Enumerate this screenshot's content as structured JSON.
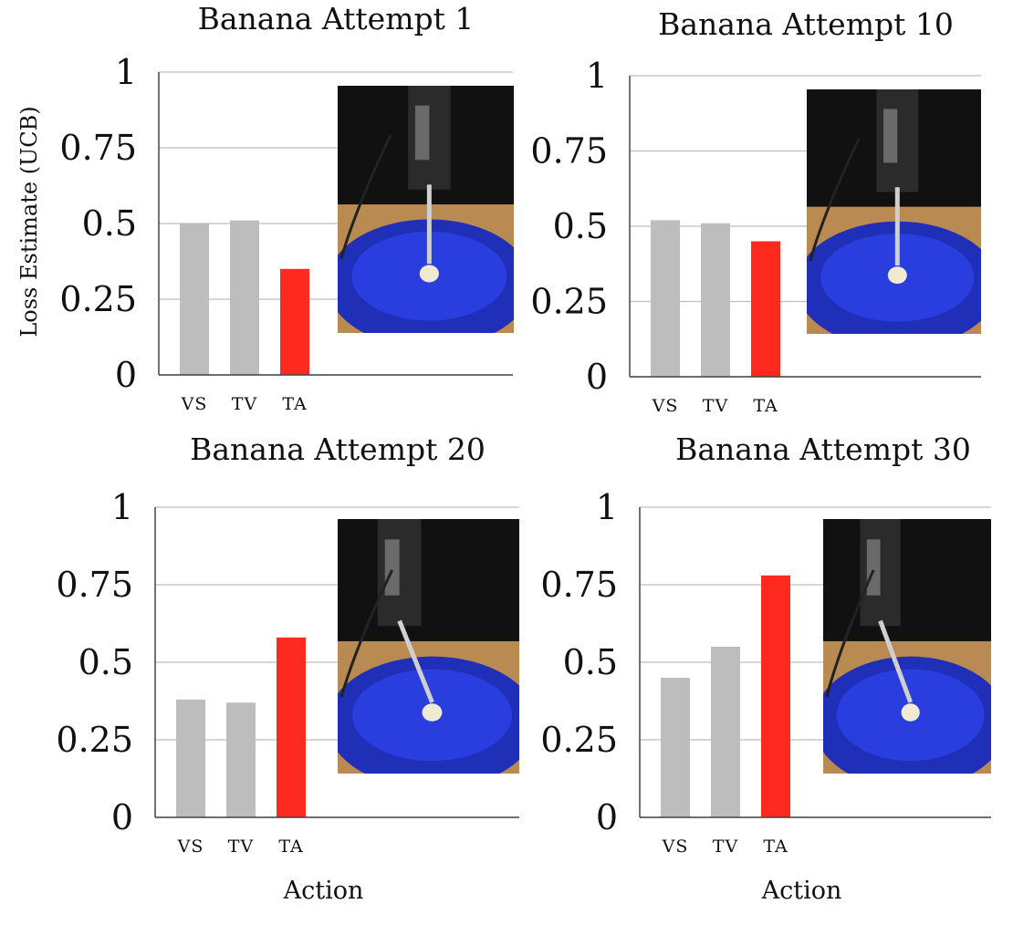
{
  "figure": {
    "shared_ylabel": "Loss Estimate (UCB)",
    "shared_xlabel": "Action"
  },
  "colors": {
    "default_bar": "#bdbdbd",
    "selected_bar": "#ff2a1f",
    "grid": "#bdbdbd",
    "axis": "#444444"
  },
  "chart_data": [
    {
      "type": "bar",
      "title": "Banana Attempt 1",
      "categories": [
        "VS",
        "TV",
        "TA"
      ],
      "values": [
        0.5,
        0.51,
        0.35
      ],
      "highlight": "TA",
      "ylim": [
        0,
        1
      ],
      "yticks": [
        0,
        0.25,
        0.5,
        0.75,
        1
      ],
      "ytick_labels": [
        "0",
        "0.25",
        "0.5",
        "0.75",
        "1"
      ],
      "grid": true,
      "ylabel": "Loss Estimate (UCB)",
      "xlabel": "",
      "inset": "robot-fork-over-blue-plate-photo"
    },
    {
      "type": "bar",
      "title": "Banana Attempt 10",
      "categories": [
        "VS",
        "TV",
        "TA"
      ],
      "values": [
        0.52,
        0.51,
        0.45
      ],
      "highlight": "TA",
      "ylim": [
        0,
        1
      ],
      "yticks": [
        0,
        0.25,
        0.5,
        0.75,
        1
      ],
      "ytick_labels": [
        "0",
        "0.25",
        "0.5",
        "0.75",
        "1"
      ],
      "grid": true,
      "ylabel": "",
      "xlabel": "",
      "inset": "robot-fork-over-blue-plate-photo"
    },
    {
      "type": "bar",
      "title": "Banana Attempt 20",
      "categories": [
        "VS",
        "TV",
        "TA"
      ],
      "values": [
        0.38,
        0.37,
        0.58
      ],
      "highlight": "TA",
      "ylim": [
        0,
        1
      ],
      "yticks": [
        0,
        0.25,
        0.5,
        0.75,
        1
      ],
      "ytick_labels": [
        "0",
        "0.25",
        "0.5",
        "0.75",
        "1"
      ],
      "grid": true,
      "ylabel": "",
      "xlabel": "Action",
      "inset": "robot-fork-over-blue-plate-photo"
    },
    {
      "type": "bar",
      "title": "Banana Attempt 30",
      "categories": [
        "VS",
        "TV",
        "TA"
      ],
      "values": [
        0.45,
        0.55,
        0.78
      ],
      "highlight": "TA",
      "ylim": [
        0,
        1
      ],
      "yticks": [
        0,
        0.25,
        0.5,
        0.75,
        1
      ],
      "ytick_labels": [
        "0",
        "0.25",
        "0.5",
        "0.75",
        "1"
      ],
      "grid": true,
      "ylabel": "",
      "xlabel": "Action",
      "inset": "robot-fork-over-blue-plate-photo"
    }
  ]
}
